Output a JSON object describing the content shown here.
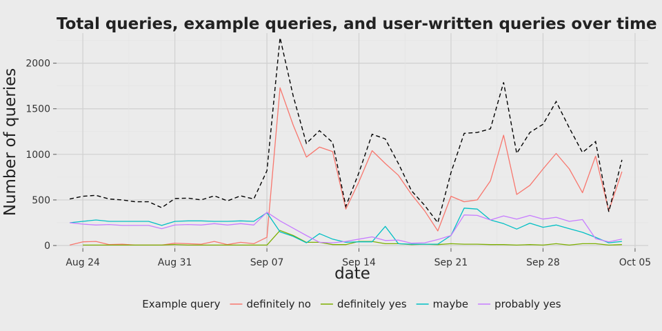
{
  "chart_data": {
    "type": "line",
    "title": "Total queries, example queries, and user-written queries over time",
    "xlabel": "date",
    "ylabel": "Number of queries",
    "x_ticks": [
      "Aug 24",
      "Aug 31",
      "Sep 07",
      "Sep 14",
      "Sep 21",
      "Sep 28",
      "Oct 05"
    ],
    "x_tick_days": [
      0,
      7,
      14,
      21,
      28,
      35,
      42
    ],
    "y_ticks": [
      0,
      500,
      1000,
      1500,
      2000
    ],
    "xlim": [
      "2015-08-22",
      "2015-10-06"
    ],
    "ylim": [
      -30,
      2330
    ],
    "grid": true,
    "legend_position": "bottom",
    "legend_title": "Example query",
    "dates": [
      "2015-08-23",
      "2015-08-24",
      "2015-08-25",
      "2015-08-26",
      "2015-08-27",
      "2015-08-28",
      "2015-08-29",
      "2015-08-30",
      "2015-08-31",
      "2015-09-01",
      "2015-09-02",
      "2015-09-03",
      "2015-09-04",
      "2015-09-05",
      "2015-09-06",
      "2015-09-07",
      "2015-09-08",
      "2015-09-09",
      "2015-09-10",
      "2015-09-11",
      "2015-09-12",
      "2015-09-13",
      "2015-09-14",
      "2015-09-15",
      "2015-09-16",
      "2015-09-17",
      "2015-09-18",
      "2015-09-19",
      "2015-09-20",
      "2015-09-21",
      "2015-09-22",
      "2015-09-23",
      "2015-09-24",
      "2015-09-25",
      "2015-09-26",
      "2015-09-27",
      "2015-09-28",
      "2015-09-29",
      "2015-09-30",
      "2015-10-01",
      "2015-10-02",
      "2015-10-03",
      "2015-10-04"
    ],
    "total": {
      "style": "dashed",
      "color": "#000000",
      "values": [
        510,
        540,
        550,
        510,
        500,
        480,
        480,
        415,
        515,
        520,
        500,
        545,
        490,
        545,
        510,
        820,
        2280,
        1640,
        1120,
        1260,
        1130,
        430,
        800,
        1220,
        1170,
        900,
        600,
        440,
        250,
        800,
        1230,
        1240,
        1280,
        1790,
        1010,
        1240,
        1330,
        1580,
        1290,
        1020,
        1140,
        370,
        940
      ]
    },
    "series": [
      {
        "name": "definitely no",
        "color": "#f8766d",
        "values": [
          5,
          40,
          45,
          10,
          15,
          5,
          5,
          5,
          25,
          20,
          15,
          45,
          10,
          35,
          20,
          90,
          1730,
          1320,
          970,
          1080,
          1030,
          400,
          700,
          1040,
          900,
          770,
          560,
          380,
          160,
          540,
          480,
          500,
          710,
          1210,
          560,
          660,
          840,
          1010,
          840,
          580,
          980,
          380,
          810
        ]
      },
      {
        "name": "definitely yes",
        "color": "#7cae00",
        "values": [
          null,
          5,
          5,
          5,
          5,
          5,
          5,
          5,
          10,
          5,
          5,
          5,
          5,
          5,
          5,
          5,
          165,
          110,
          35,
          35,
          10,
          10,
          45,
          45,
          20,
          20,
          10,
          15,
          10,
          20,
          15,
          15,
          10,
          10,
          5,
          10,
          5,
          20,
          5,
          20,
          20,
          5,
          10
        ]
      },
      {
        "name": "maybe",
        "color": "#00bfc4",
        "values": [
          250,
          265,
          280,
          265,
          265,
          265,
          265,
          220,
          265,
          270,
          270,
          265,
          265,
          270,
          265,
          360,
          150,
          100,
          30,
          130,
          70,
          35,
          40,
          40,
          210,
          20,
          15,
          15,
          15,
          110,
          410,
          400,
          280,
          240,
          180,
          245,
          200,
          225,
          185,
          145,
          90,
          30,
          45
        ]
      },
      {
        "name": "probably yes",
        "color": "#c77cff",
        "values": [
          250,
          235,
          225,
          230,
          220,
          220,
          220,
          185,
          225,
          230,
          225,
          240,
          225,
          240,
          225,
          365,
          270,
          190,
          110,
          35,
          30,
          45,
          70,
          95,
          55,
          60,
          25,
          30,
          65,
          110,
          335,
          330,
          280,
          325,
          290,
          330,
          290,
          310,
          265,
          285,
          75,
          40,
          70
        ]
      }
    ]
  }
}
